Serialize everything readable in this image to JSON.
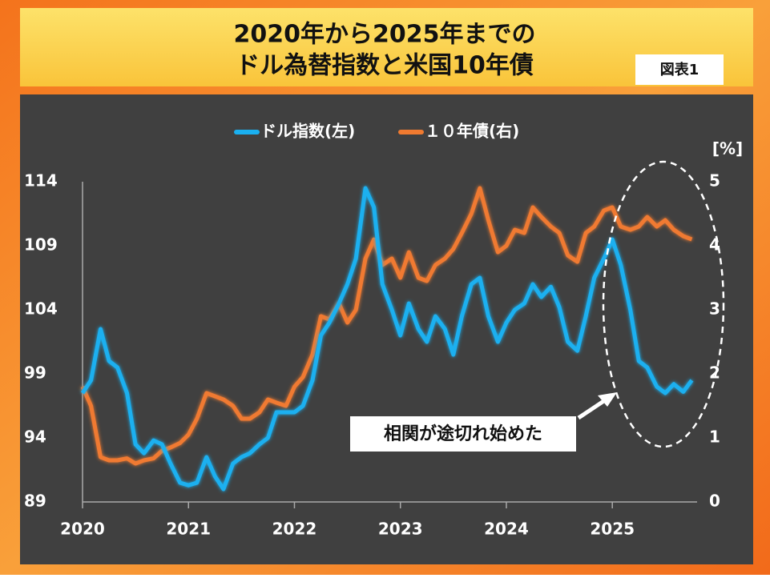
{
  "chart_data": {
    "type": "line",
    "title": "2020年から2025年までの",
    "subtitle": "ドル為替指数と米国10年債",
    "figure_label": "図表1",
    "annotation": "相関が途切れ始めた",
    "y2_label": "[%]",
    "xlim": [
      2020,
      2025.8
    ],
    "xticks": [
      2020,
      2021,
      2022,
      2023,
      2024,
      2025
    ],
    "ylim": [
      89,
      114
    ],
    "yticks": [
      89,
      94,
      99,
      104,
      109,
      114
    ],
    "y2lim": [
      0,
      5
    ],
    "y2ticks": [
      0,
      1,
      2,
      3,
      4,
      5
    ],
    "grid": false,
    "legend": "top",
    "x": [
      2020,
      2020.08,
      2020.17,
      2020.25,
      2020.33,
      2020.42,
      2020.5,
      2020.58,
      2020.67,
      2020.75,
      2020.83,
      2020.92,
      2021,
      2021.08,
      2021.17,
      2021.25,
      2021.33,
      2021.42,
      2021.5,
      2021.58,
      2021.67,
      2021.75,
      2021.83,
      2021.92,
      2022,
      2022.08,
      2022.17,
      2022.25,
      2022.33,
      2022.42,
      2022.5,
      2022.58,
      2022.67,
      2022.75,
      2022.83,
      2022.92,
      2023,
      2023.08,
      2023.17,
      2023.25,
      2023.33,
      2023.42,
      2023.5,
      2023.58,
      2023.67,
      2023.75,
      2023.83,
      2023.92,
      2024,
      2024.08,
      2024.17,
      2024.25,
      2024.33,
      2024.42,
      2024.5,
      2024.58,
      2024.67,
      2024.75,
      2024.83,
      2024.92,
      2025,
      2025.08,
      2025.17,
      2025.25,
      2025.33,
      2025.42,
      2025.5,
      2025.58,
      2025.67,
      2025.75
    ],
    "series": [
      {
        "name": "ドル指数(左)",
        "color": "#1ab0f0",
        "axis": "y",
        "values": [
          97.5,
          98.5,
          102.5,
          100,
          99.5,
          97.5,
          93.5,
          92.8,
          93.8,
          93.5,
          92,
          90.5,
          90.3,
          90.5,
          92.5,
          91,
          90,
          92,
          92.5,
          92.8,
          93.5,
          94,
          96,
          96,
          96,
          96.5,
          98.5,
          102,
          103,
          104.5,
          106,
          108,
          113.5,
          112,
          106,
          104,
          102,
          104.5,
          102.5,
          101.5,
          103.5,
          102.5,
          100.5,
          103.5,
          106,
          106.5,
          103.5,
          101.5,
          103,
          104,
          104.5,
          106,
          105,
          105.8,
          104.2,
          101.5,
          100.8,
          103.5,
          106.5,
          108,
          109.5,
          107.5,
          104,
          100,
          99.5,
          98,
          97.5,
          98.2,
          97.6,
          98.5
        ]
      },
      {
        "name": "１０年債(右)",
        "color": "#f07a30",
        "axis": "y2",
        "values": [
          1.8,
          1.5,
          0.7,
          0.65,
          0.65,
          0.68,
          0.6,
          0.65,
          0.68,
          0.8,
          0.85,
          0.92,
          1.05,
          1.3,
          1.7,
          1.65,
          1.6,
          1.5,
          1.3,
          1.3,
          1.4,
          1.6,
          1.55,
          1.5,
          1.8,
          1.95,
          2.3,
          2.9,
          2.85,
          3.1,
          2.8,
          3.0,
          3.8,
          4.1,
          3.7,
          3.8,
          3.5,
          3.9,
          3.5,
          3.45,
          3.7,
          3.8,
          3.95,
          4.2,
          4.5,
          4.9,
          4.4,
          3.9,
          4.0,
          4.25,
          4.2,
          4.6,
          4.45,
          4.3,
          4.2,
          3.85,
          3.75,
          4.2,
          4.3,
          4.55,
          4.6,
          4.3,
          4.25,
          4.3,
          4.45,
          4.3,
          4.4,
          4.25,
          4.15,
          4.1
        ]
      }
    ]
  }
}
